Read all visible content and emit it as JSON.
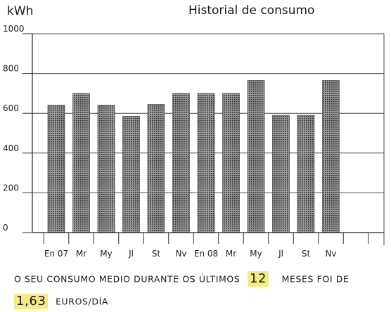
{
  "chart_data": {
    "type": "bar",
    "title": "Historial de consumo",
    "ylabel": "kWh",
    "xlabel": "",
    "ylim": [
      0,
      1000
    ],
    "yticks": [
      0,
      200,
      400,
      600,
      800,
      1000
    ],
    "grid": "horizontal",
    "categories": [
      "En 07",
      "Mr",
      "My",
      "Jl",
      "St",
      "Nv",
      "En 08",
      "Mr",
      "My",
      "Jl",
      "St",
      "Nv"
    ],
    "values": [
      640,
      700,
      640,
      585,
      645,
      700,
      700,
      700,
      765,
      590,
      590,
      765
    ],
    "bar_color": "#555555"
  },
  "summary": {
    "line1_prefix": "O SEU CONSUMO MEDIO DURANTE OS ÚLTIMOS",
    "months_value": "12",
    "line1_suffix": "MESES FOI DE",
    "amount_value": "1,63",
    "line2_suffix": "EUROS/DÍA"
  },
  "colors": {
    "highlight": "#f6eb87"
  }
}
